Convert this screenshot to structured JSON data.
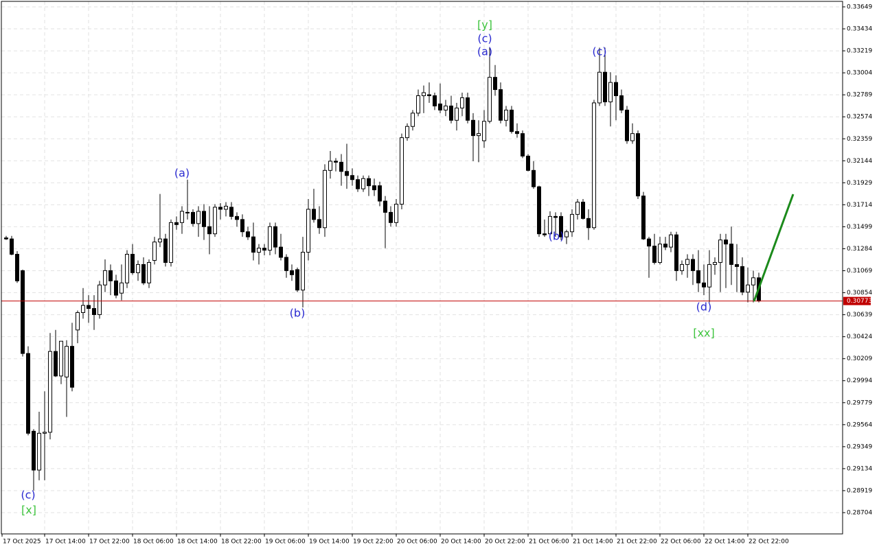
{
  "chart_data": {
    "type": "candlestick",
    "categories": [
      "17 Oct 2025",
      null,
      null,
      null,
      null,
      null,
      null,
      "17 Oct 14:00",
      null,
      null,
      null,
      null,
      null,
      null,
      null,
      "17 Oct 22:00",
      null,
      null,
      null,
      null,
      null,
      null,
      null,
      "18 Oct 06:00",
      null,
      null,
      null,
      null,
      null,
      null,
      null,
      "18 Oct 14:00",
      null,
      null,
      null,
      null,
      null,
      null,
      null,
      "18 Oct 22:00",
      null,
      null,
      null,
      null,
      null,
      null,
      null,
      "19 Oct 06:00",
      null,
      null,
      null,
      null,
      null,
      null,
      null,
      "19 Oct 14:00",
      null,
      null,
      null,
      null,
      null,
      null,
      null,
      "19 Oct 22:00",
      null,
      null,
      null,
      null,
      null,
      null,
      null,
      "20 Oct 06:00",
      null,
      null,
      null,
      null,
      null,
      null,
      null,
      "20 Oct 14:00",
      null,
      null,
      null,
      null,
      null,
      null,
      null,
      "20 Oct 22:00",
      null,
      null,
      null,
      null,
      null,
      null,
      null,
      "21 Oct 06:00",
      null,
      null,
      null,
      null,
      null,
      null,
      null,
      "21 Oct 14:00",
      null,
      null,
      null,
      null,
      null,
      null,
      null,
      "21 Oct 22:00",
      null,
      null,
      null,
      null,
      null,
      null,
      null,
      "22 Oct 06:00",
      null,
      null,
      null,
      null,
      null,
      null,
      null,
      "22 Oct 14:00",
      null,
      null,
      null,
      null,
      null,
      null,
      null,
      "22 Oct 22:00",
      null,
      null
    ],
    "open": [
      0.3139,
      0.3138,
      0.3123,
      0.3107,
      0.3026,
      0.295,
      0.2912,
      0.2948,
      0.2949,
      0.3028,
      0.3004,
      0.3003,
      0.3033,
      0.3049,
      0.3066,
      0.3073,
      0.307,
      0.3064,
      0.3093,
      0.3107,
      0.3097,
      0.3085,
      0.3095,
      0.3123,
      0.3105,
      0.3113,
      0.3095,
      0.3117,
      0.3135,
      0.3138,
      0.3115,
      0.3154,
      0.3154,
      0.3164,
      0.3164,
      0.3153,
      0.3165,
      0.315,
      0.3143,
      0.3169,
      0.3167,
      0.3169,
      0.316,
      0.3157,
      0.3145,
      0.314,
      0.3125,
      0.3129,
      0.3127,
      0.315,
      0.313,
      0.312,
      0.3107,
      0.3108,
      0.3088,
      0.3125,
      0.3167,
      0.3157,
      0.3149,
      0.3205,
      0.3214,
      0.3213,
      0.3204,
      0.32,
      0.3196,
      0.3187,
      0.3197,
      0.319,
      0.319,
      0.3175,
      0.3164,
      0.3154,
      0.3172,
      0.3237,
      0.3248,
      0.3261,
      0.3278,
      0.3279,
      0.3278,
      0.327,
      0.3264,
      0.3268,
      0.3254,
      0.3266,
      0.3276,
      0.3254,
      0.3239,
      0.3234,
      0.3253,
      0.3296,
      0.3284,
      0.3254,
      0.3264,
      0.3243,
      0.3241,
      0.3219,
      0.3205,
      0.3189,
      0.3143,
      0.3143,
      0.316,
      0.316,
      0.314,
      0.3145,
      0.3162,
      0.3174,
      0.3158,
      0.3149,
      0.3271,
      0.3301,
      0.3272,
      0.3291,
      0.3278,
      0.3264,
      0.3234,
      0.3241,
      0.318,
      0.3138,
      0.3131,
      0.3115,
      0.3133,
      0.313,
      0.3142,
      0.3107,
      0.3113,
      0.3118,
      0.3107,
      0.3095,
      0.3091,
      0.3113,
      0.3115,
      0.3137,
      0.3133,
      0.3113,
      0.3111,
      0.3086,
      0.3093,
      0.31
    ],
    "high": [
      0.3141,
      0.3141,
      0.3126,
      0.3108,
      0.3033,
      0.2952,
      0.2969,
      0.2989,
      0.3046,
      0.3049,
      0.3036,
      0.3039,
      0.3056,
      0.3068,
      0.309,
      0.3083,
      0.3083,
      0.3097,
      0.3118,
      0.3113,
      0.3103,
      0.3113,
      0.3127,
      0.3133,
      0.3117,
      0.312,
      0.3118,
      0.314,
      0.3182,
      0.3143,
      0.3157,
      0.316,
      0.317,
      0.3196,
      0.3167,
      0.317,
      0.3172,
      0.317,
      0.3172,
      0.3173,
      0.3174,
      0.3174,
      0.3164,
      0.3162,
      0.315,
      0.3154,
      0.3133,
      0.3133,
      0.3154,
      0.3154,
      0.3143,
      0.3123,
      0.3113,
      0.311,
      0.314,
      0.3177,
      0.3187,
      0.317,
      0.3211,
      0.3224,
      0.3217,
      0.3221,
      0.3231,
      0.3207,
      0.32,
      0.32,
      0.32,
      0.3197,
      0.3194,
      0.318,
      0.317,
      0.3177,
      0.3241,
      0.3251,
      0.3264,
      0.3284,
      0.3288,
      0.3291,
      0.3281,
      0.329,
      0.3274,
      0.3278,
      0.3271,
      0.3281,
      0.3281,
      0.3261,
      0.3254,
      0.3264,
      0.3325,
      0.3308,
      0.3291,
      0.3268,
      0.3268,
      0.3251,
      0.3244,
      0.3221,
      0.3214,
      0.319,
      0.3157,
      0.3165,
      0.3164,
      0.3164,
      0.3147,
      0.3167,
      0.3177,
      0.3177,
      0.3167,
      0.3274,
      0.3325,
      0.3325,
      0.3301,
      0.3298,
      0.3284,
      0.3268,
      0.3251,
      0.3244,
      0.3184,
      0.314,
      0.3143,
      0.314,
      0.314,
      0.3145,
      0.3145,
      0.3117,
      0.3123,
      0.3123,
      0.3127,
      0.3113,
      0.3127,
      0.312,
      0.3143,
      0.3143,
      0.315,
      0.3133,
      0.312,
      0.311,
      0.3107,
      0.3105
    ],
    "low": [
      0.3137,
      0.3122,
      0.3095,
      0.3023,
      0.2946,
      0.2892,
      0.2902,
      0.2902,
      0.2942,
      0.3003,
      0.2996,
      0.2964,
      0.2989,
      0.3036,
      0.306,
      0.3056,
      0.3049,
      0.306,
      0.3086,
      0.3083,
      0.308,
      0.3078,
      0.309,
      0.3103,
      0.3097,
      0.3093,
      0.309,
      0.3113,
      0.313,
      0.3111,
      0.3111,
      0.3147,
      0.3143,
      0.3157,
      0.315,
      0.314,
      0.3137,
      0.3123,
      0.314,
      0.3157,
      0.316,
      0.3157,
      0.315,
      0.314,
      0.3137,
      0.3117,
      0.3113,
      0.3122,
      0.3122,
      0.3123,
      0.3117,
      0.31,
      0.3097,
      0.3086,
      0.3071,
      0.3117,
      0.3154,
      0.3143,
      0.314,
      0.3197,
      0.3204,
      0.319,
      0.3187,
      0.319,
      0.3184,
      0.3184,
      0.318,
      0.318,
      0.317,
      0.3129,
      0.315,
      0.315,
      0.3167,
      0.3234,
      0.3244,
      0.3258,
      0.3261,
      0.3271,
      0.3264,
      0.3261,
      0.3258,
      0.3251,
      0.3244,
      0.3258,
      0.3251,
      0.3214,
      0.3213,
      0.3227,
      0.3251,
      0.3278,
      0.3251,
      0.3248,
      0.3241,
      0.3237,
      0.3217,
      0.3204,
      0.3187,
      0.314,
      0.314,
      0.3138,
      0.314,
      0.3137,
      0.3133,
      0.314,
      0.3157,
      0.3157,
      0.3137,
      0.3147,
      0.3268,
      0.3268,
      0.3248,
      0.3254,
      0.3261,
      0.3231,
      0.3231,
      0.3177,
      0.3137,
      0.31,
      0.3113,
      0.3113,
      0.3127,
      0.3125,
      0.3097,
      0.3103,
      0.31,
      0.3093,
      0.3086,
      0.3083,
      0.3076,
      0.3103,
      0.3086,
      0.309,
      0.3093,
      0.3086,
      0.3083,
      0.3076,
      0.3076,
      0.3076
    ],
    "close": [
      0.3138,
      0.3123,
      0.3097,
      0.3026,
      0.2948,
      0.2912,
      0.2948,
      0.2949,
      0.3028,
      0.3004,
      0.3038,
      0.3033,
      0.2993,
      0.3066,
      0.3073,
      0.307,
      0.3064,
      0.3093,
      0.3107,
      0.3097,
      0.3083,
      0.3095,
      0.3123,
      0.3105,
      0.3113,
      0.3095,
      0.3115,
      0.3135,
      0.3138,
      0.3115,
      0.3154,
      0.3152,
      0.3165,
      0.3164,
      0.3153,
      0.3165,
      0.315,
      0.3143,
      0.3169,
      0.3167,
      0.317,
      0.316,
      0.3157,
      0.3145,
      0.314,
      0.3125,
      0.3129,
      0.3127,
      0.315,
      0.313,
      0.312,
      0.3107,
      0.3103,
      0.3088,
      0.3125,
      0.3167,
      0.3157,
      0.3149,
      0.3205,
      0.3214,
      0.3213,
      0.3204,
      0.32,
      0.3196,
      0.3187,
      0.3197,
      0.319,
      0.3186,
      0.3175,
      0.3164,
      0.3154,
      0.3172,
      0.3237,
      0.3248,
      0.3261,
      0.3278,
      0.3281,
      0.3278,
      0.3268,
      0.3264,
      0.3268,
      0.3254,
      0.3266,
      0.3276,
      0.3254,
      0.3239,
      0.3241,
      0.3253,
      0.3296,
      0.3284,
      0.3254,
      0.3264,
      0.3243,
      0.3241,
      0.3219,
      0.3205,
      0.3189,
      0.3143,
      0.3142,
      0.316,
      0.3159,
      0.314,
      0.3145,
      0.3162,
      0.3174,
      0.3158,
      0.3149,
      0.3271,
      0.3301,
      0.3272,
      0.3291,
      0.3278,
      0.3264,
      0.3234,
      0.3241,
      0.318,
      0.3138,
      0.3131,
      0.3115,
      0.3133,
      0.313,
      0.3142,
      0.3107,
      0.3113,
      0.3118,
      0.3107,
      0.3095,
      0.3091,
      0.3113,
      0.3115,
      0.3137,
      0.3133,
      0.3113,
      0.3111,
      0.3086,
      0.3093,
      0.31,
      0.30773
    ],
    "ylim": [
      0.28496,
      0.33716
    ],
    "yticks": [
      0.33649,
      0.33434,
      0.33219,
      0.33004,
      0.32789,
      0.32574,
      0.32359,
      0.32144,
      0.31929,
      0.31714,
      0.31499,
      0.31284,
      0.31069,
      0.30854,
      0.30639,
      0.30424,
      0.30209,
      0.29994,
      0.29779,
      0.29564,
      0.29349,
      0.29134,
      0.28919,
      0.28704
    ],
    "current_price": 0.30773,
    "grid": true,
    "up_color": "#ffffff",
    "down_color": "#000000",
    "annotations": [
      {
        "text": "(c)",
        "color": "#2a2ad0"
      },
      {
        "text": "[x]",
        "color": "#3ec43e"
      },
      {
        "text": "(a)",
        "color": "#2a2ad0"
      },
      {
        "text": "(b)",
        "color": "#2a2ad0"
      },
      {
        "text": "[y]",
        "color": "#3ec43e"
      },
      {
        "text": "(c)",
        "color": "#2a2ad0"
      },
      {
        "text": "(a)",
        "color": "#2a2ad0"
      },
      {
        "text": "(b)",
        "color": "#2a2ad0"
      },
      {
        "text": "(c)",
        "color": "#2a2ad0"
      },
      {
        "text": "(d)",
        "color": "#2a2ad0"
      },
      {
        "text": "[xx]",
        "color": "#3ec43e"
      }
    ]
  }
}
